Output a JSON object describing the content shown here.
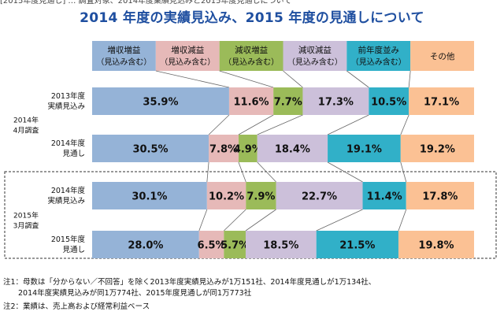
{
  "header": {
    "top_fragment": "[2015年度見通し] … 調査対象、2014年度業績見込みと2015年度見通しについて",
    "title": "2014 年度の実績見込み、2015 年度の見通しについて"
  },
  "notes": [
    "注1：母数は「分からない／不回答」を除く2013年度実績見込みが1万151社、2014年度見通しが1万134社、",
    "　　2014年度実績見込みが同1万774社、2015年度見通しが同1万773社",
    "注2：業績は、売上高および経常利益ベース"
  ],
  "colors": {
    "増収増益": "#95b3d7",
    "増収減益": "#e6b9b8",
    "減収増益": "#9bbb59",
    "減収減益": "#ccc0da",
    "前年度並み": "#31b0c8",
    "その他": "#fbc194"
  },
  "chart_data": {
    "type": "bar",
    "orientation": "horizontal-stacked-100",
    "title": "2014 年度の実績見込み、2015 年度の見通しについて",
    "legend": [
      {
        "name": "増収増益",
        "sub": "（見込み含む）"
      },
      {
        "name": "増収減益",
        "sub": "（見込み含む）"
      },
      {
        "name": "減収増益",
        "sub": "（見込み含む）"
      },
      {
        "name": "減収減益",
        "sub": "（見込み含む）"
      },
      {
        "name": "前年度並み",
        "sub": "（見込み含む）"
      },
      {
        "name": "その他",
        "sub": ""
      }
    ],
    "groups": [
      {
        "label": [
          "2014年",
          "4月調査"
        ],
        "boxed": false
      },
      {
        "label": [
          "2015年",
          "3月調査"
        ],
        "boxed": true
      }
    ],
    "rows": [
      {
        "group": 0,
        "label": [
          "2013年度",
          "実績見込み"
        ],
        "values": [
          35.9,
          11.6,
          7.7,
          17.3,
          10.5,
          17.1
        ]
      },
      {
        "group": 0,
        "label": [
          "2014年度",
          "見通し"
        ],
        "values": [
          30.5,
          7.8,
          4.9,
          18.4,
          19.1,
          19.2
        ]
      },
      {
        "group": 1,
        "label": [
          "2014年度",
          "実績見込み"
        ],
        "values": [
          30.1,
          10.2,
          7.9,
          22.7,
          11.4,
          17.8
        ]
      },
      {
        "group": 1,
        "label": [
          "2015年度",
          "見通し"
        ],
        "values": [
          28.0,
          6.5,
          5.7,
          18.5,
          21.5,
          19.8
        ]
      }
    ],
    "value_format": "{v}%"
  }
}
